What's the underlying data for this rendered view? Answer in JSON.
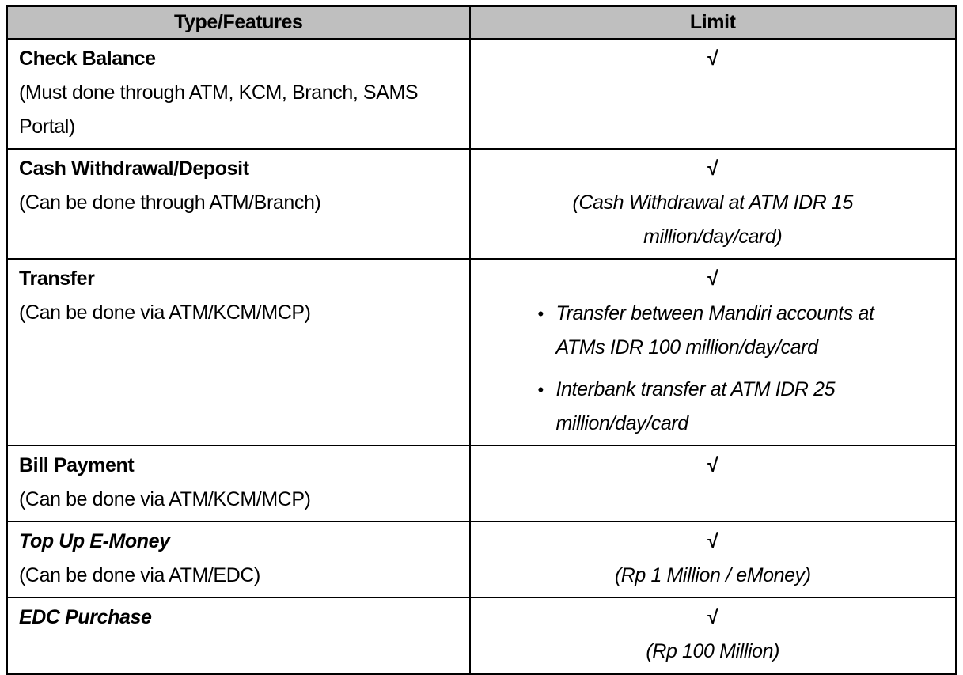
{
  "table": {
    "header": {
      "col1": "Type/Features",
      "col2": "Limit"
    },
    "check_mark": "√",
    "bullet_char": "•",
    "colors": {
      "header_bg": "#bfbfbf",
      "border": "#000000",
      "text": "#000000"
    },
    "rows": [
      {
        "title": "Check Balance",
        "note": "(Must done through ATM, KCM, Branch, SAMS\nPortal)",
        "limit_check": "√",
        "limit_note": ""
      },
      {
        "title": "Cash Withdrawal/Deposit",
        "note": "(Can be done through ATM/Branch)",
        "limit_check": "√",
        "limit_note": "(Cash Withdrawal at ATM IDR 15\nmillion/day/card)"
      },
      {
        "title": "Transfer",
        "note": "(Can be done via ATM/KCM/MCP)",
        "limit_check": "√",
        "bullets": [
          "Transfer between Mandiri accounts at\nATMs IDR 100 million/day/card",
          "Interbank transfer at ATM IDR 25\nmillion/day/card"
        ]
      },
      {
        "title": "Bill Payment",
        "note": "(Can be done via ATM/KCM/MCP)",
        "limit_check": "√",
        "limit_note": ""
      },
      {
        "title": "Top Up E-Money",
        "note": "(Can be done via ATM/EDC)",
        "limit_check": "√",
        "limit_note": "(Rp 1 Million / eMoney)"
      },
      {
        "title": "EDC Purchase",
        "note": "",
        "limit_check": "√",
        "limit_note": "(Rp 100 Million)"
      }
    ]
  }
}
